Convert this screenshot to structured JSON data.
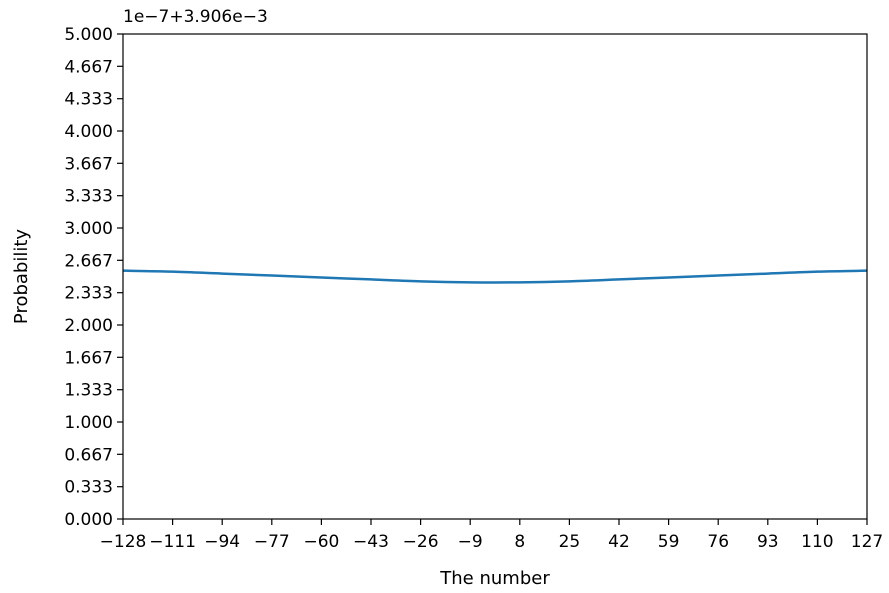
{
  "chart_data": {
    "type": "line",
    "title": "",
    "xlabel": "The number",
    "ylabel": "Probability",
    "y_offset_label": "1e−7+3.906e−3",
    "xlim": [
      -128,
      127
    ],
    "ylim": [
      0.0,
      5.0
    ],
    "x_ticks": [
      -128,
      -111,
      -94,
      -77,
      -60,
      -43,
      -26,
      -9,
      8,
      25,
      42,
      59,
      76,
      93,
      110,
      127
    ],
    "x_tick_labels": [
      "−128",
      "−111",
      "−94",
      "−77",
      "−60",
      "−43",
      "−26",
      "−9",
      "8",
      "25",
      "42",
      "59",
      "76",
      "93",
      "110",
      "127"
    ],
    "y_ticks": [
      0.0,
      0.333,
      0.667,
      1.0,
      1.333,
      1.667,
      2.0,
      2.333,
      2.667,
      3.0,
      3.333,
      3.667,
      4.0,
      4.333,
      4.667,
      5.0
    ],
    "y_tick_labels": [
      "0.000",
      "0.333",
      "0.667",
      "1.000",
      "1.333",
      "1.667",
      "2.000",
      "2.333",
      "2.667",
      "3.000",
      "3.333",
      "3.667",
      "4.000",
      "4.333",
      "4.667",
      "5.000"
    ],
    "grid": false,
    "legend": "none",
    "series": [
      {
        "color": "#1f77b4",
        "x": [
          -128,
          -111,
          -94,
          -77,
          -60,
          -43,
          -26,
          -9,
          8,
          25,
          42,
          59,
          76,
          93,
          110,
          127
        ],
        "y": [
          2.56,
          2.55,
          2.53,
          2.51,
          2.49,
          2.47,
          2.45,
          2.44,
          2.44,
          2.45,
          2.47,
          2.49,
          2.51,
          2.53,
          2.55,
          2.56
        ]
      }
    ]
  }
}
